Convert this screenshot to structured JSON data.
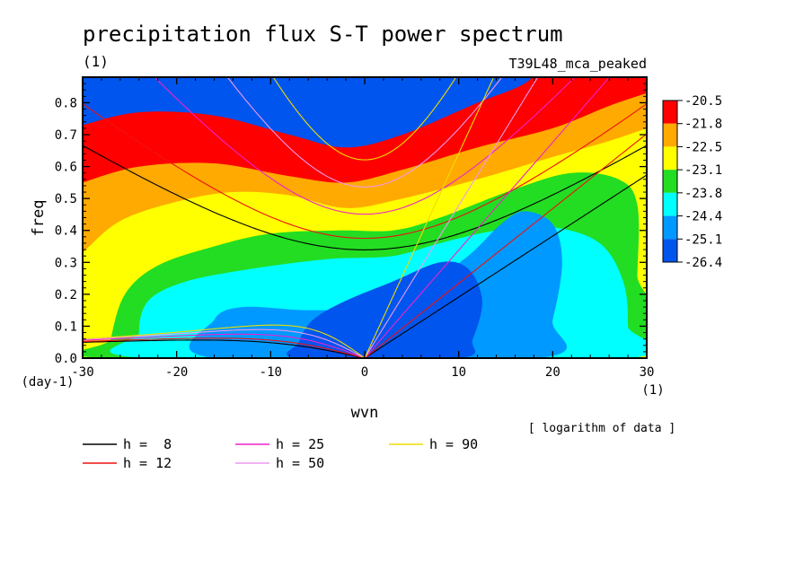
{
  "chart_data": {
    "type": "heatmap",
    "title": "precipitation flux S-T power spectrum",
    "units_label": "(1)",
    "experiment": "T39L48_mca_peaked",
    "xlabel": "wvn",
    "ylabel": "freq",
    "x_units": "(1)",
    "y_units": "(day-1)",
    "xlim": [
      -30,
      30
    ],
    "ylim": [
      0,
      0.88
    ],
    "x_ticks": [
      "-30",
      "-20",
      "-10",
      "0",
      "10",
      "20",
      "30"
    ],
    "y_ticks": [
      "0.0",
      "0.1",
      "0.2",
      "0.3",
      "0.4",
      "0.5",
      "0.6",
      "0.7",
      "0.8"
    ],
    "note": "[ logarithm of data ]",
    "colorbar": {
      "levels": [
        "-20.5",
        "-21.8",
        "-22.5",
        "-23.1",
        "-23.8",
        "-24.4",
        "-25.1",
        "-26.4"
      ],
      "colors": [
        "#ff0000",
        "#ffaa00",
        "#ffff00",
        "#22dd22",
        "#00ffff",
        "#0099ff",
        "#0055ee"
      ]
    },
    "contour_colors": [
      "#ff0000",
      "#ffaa00",
      "#ffff00",
      "#22dd22",
      "#00ffff",
      "#0099ff",
      "#0055ee"
    ],
    "series": [
      {
        "name": "h =  8",
        "h": 8,
        "color": "#000000"
      },
      {
        "name": "h = 12",
        "h": 12,
        "color": "#ee1111"
      },
      {
        "name": "h = 25",
        "h": 25,
        "color": "#ee22cc"
      },
      {
        "name": "h = 50",
        "h": 50,
        "color": "#ee99ee"
      },
      {
        "name": "h = 90",
        "h": 90,
        "color": "#eedd00"
      }
    ]
  }
}
